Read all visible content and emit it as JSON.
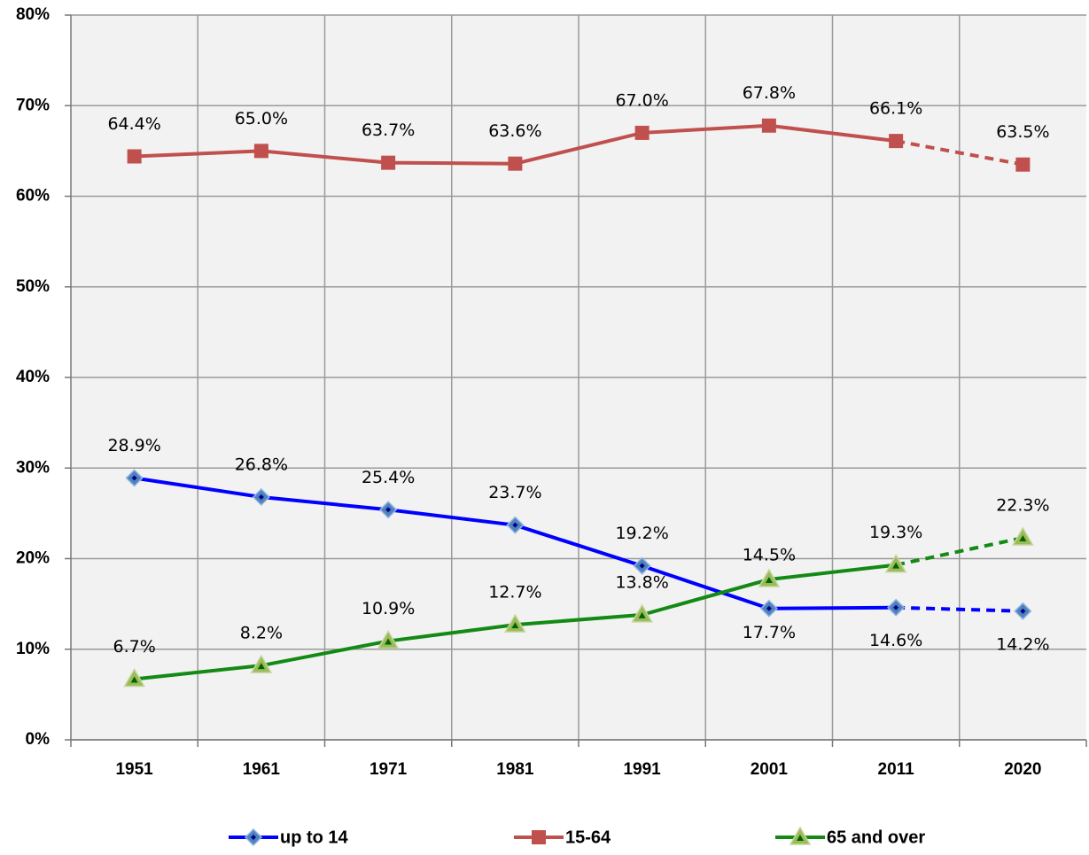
{
  "chart_data": {
    "type": "line",
    "categories": [
      "1951",
      "1961",
      "1971",
      "1981",
      "1991",
      "2001",
      "2011",
      "2020"
    ],
    "series": [
      {
        "name": "up to 14",
        "color": "#0000ff",
        "marker": "diamond",
        "marker_color": "#4f81bd",
        "values": [
          28.9,
          26.8,
          25.4,
          23.7,
          19.2,
          14.5,
          14.6,
          14.2
        ],
        "value_labels": [
          "28.9%",
          "26.8%",
          "25.4%",
          "23.7%",
          "19.2%",
          "14.5%",
          "14.6%",
          "14.2%"
        ]
      },
      {
        "name": "15-64",
        "color": "#c0504d",
        "marker": "square",
        "marker_color": "#c0504d",
        "values": [
          64.4,
          65.0,
          63.7,
          63.6,
          67.0,
          67.8,
          66.1,
          63.5
        ],
        "value_labels": [
          "64.4%",
          "65.0%",
          "63.7%",
          "63.6%",
          "67.0%",
          "67.8%",
          "66.1%",
          "63.5%"
        ]
      },
      {
        "name": "65 and over",
        "color": "#138a13",
        "marker": "triangle",
        "marker_color": "#9bbb59",
        "values": [
          6.7,
          8.2,
          10.9,
          12.7,
          13.8,
          17.7,
          19.3,
          22.3
        ],
        "value_labels": [
          "6.7%",
          "8.2%",
          "10.9%",
          "12.7%",
          "13.8%",
          "17.7%",
          "19.3%",
          "22.3%"
        ]
      }
    ],
    "ylim": [
      0,
      80
    ],
    "yticks": [
      {
        "value": 0,
        "label": "0%"
      },
      {
        "value": 10,
        "label": "10%"
      },
      {
        "value": 20,
        "label": "20%"
      },
      {
        "value": 30,
        "label": "30%"
      },
      {
        "value": 40,
        "label": "40%"
      },
      {
        "value": 50,
        "label": "50%"
      },
      {
        "value": 60,
        "label": "60%"
      },
      {
        "value": 70,
        "label": "70%"
      },
      {
        "value": 80,
        "label": "80%"
      }
    ],
    "grid": true,
    "legend": "bottom"
  }
}
